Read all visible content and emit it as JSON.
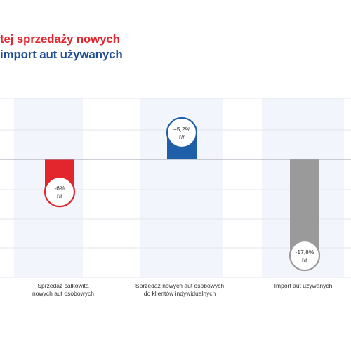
{
  "title_lines": [
    {
      "text": "tej sprzedaży nowych",
      "color": "#e3262e"
    },
    {
      "text": "import aut używanych",
      "color": "#1f4e91"
    }
  ],
  "chart_data": {
    "type": "bar",
    "categories": [
      [
        "Sprzedaż całkowita",
        "nowych aut osobowych"
      ],
      [
        "Sprzedaż nowych aut osobowych",
        "do klientów indywidualnych"
      ],
      [
        "Import aut używanych"
      ]
    ],
    "values": [
      -6,
      5.2,
      -17.8
    ],
    "value_labels": [
      [
        "-6%",
        "r/r"
      ],
      [
        "+5,2%",
        "r/r"
      ],
      [
        "-17,8%",
        "r/r"
      ]
    ],
    "bar_colors": [
      "#e3262e",
      "#1f5ea8",
      "#9a9a9a"
    ],
    "ylim": [
      -20,
      10
    ],
    "grid": true,
    "zero_line": true
  }
}
